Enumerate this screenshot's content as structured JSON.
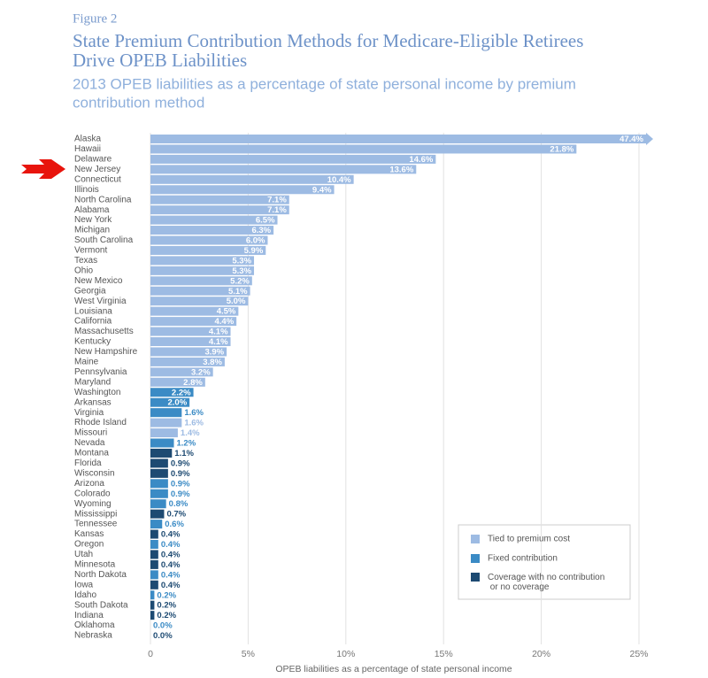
{
  "chart_data": {
    "type": "hbar",
    "figure_label": "Figure 2",
    "title": [
      "State Premium Contribution Methods for Medicare-Eligible Retirees",
      "Drive OPEB Liabilities"
    ],
    "subtitle": [
      "2013 OPEB liabilities as a percentage of state personal income by premium",
      "contribution method"
    ],
    "x_label": "OPEB liabilities as a percentage of state personal income",
    "categories": [
      "Alaska",
      "Hawaii",
      "Delaware",
      "New Jersey",
      "Connecticut",
      "Illinois",
      "North Carolina",
      "Alabama",
      "New York",
      "Michigan",
      "South Carolina",
      "Vermont",
      "Texas",
      "Ohio",
      "New Mexico",
      "Georgia",
      "West Virginia",
      "Louisiana",
      "California",
      "Massachusetts",
      "Kentucky",
      "New Hampshire",
      "Maine",
      "Pennsylvania",
      "Maryland",
      "Washington",
      "Arkansas",
      "Virginia",
      "Rhode Island",
      "Missouri",
      "Nevada",
      "Montana",
      "Florida",
      "Wisconsin",
      "Arizona",
      "Colorado",
      "Wyoming",
      "Mississippi",
      "Tennessee",
      "Kansas",
      "Oregon",
      "Utah",
      "Minnesota",
      "North Dakota",
      "Iowa",
      "Idaho",
      "South Dakota",
      "Indiana",
      "Oklahoma",
      "Nebraska"
    ],
    "series": [
      {
        "name": "Tied to premium cost",
        "color": "#9dbbe3",
        "values": [
          47.4,
          21.8,
          14.6,
          13.6,
          10.4,
          9.4,
          7.1,
          7.1,
          6.5,
          6.3,
          6.0,
          5.9,
          5.3,
          5.3,
          5.2,
          5.1,
          5.0,
          4.5,
          4.4,
          4.1,
          4.1,
          3.9,
          3.8,
          3.2,
          2.8,
          null,
          null,
          null,
          1.6,
          1.4,
          null,
          null,
          null,
          null,
          null,
          null,
          null,
          null,
          null,
          null,
          null,
          null,
          null,
          null,
          null,
          null,
          null,
          null,
          null,
          null
        ],
        "value_labels": [
          "47.4%",
          "21.8%",
          "14.6%",
          "13.6%",
          "10.4%",
          "9.4%",
          "7.1%",
          "7.1%",
          "6.5%",
          "6.3%",
          "6.0%",
          "5.9%",
          "5.3%",
          "5.3%",
          "5.2%",
          "5.1%",
          "5.0%",
          "4.5%",
          "4.4%",
          "4.1%",
          "4.1%",
          "3.9%",
          "3.8%",
          "3.2%",
          "2.8%",
          null,
          null,
          null,
          "1.6%",
          "1.4%",
          null,
          null,
          null,
          null,
          null,
          null,
          null,
          null,
          null,
          null,
          null,
          null,
          null,
          null,
          null,
          null,
          null,
          null,
          null,
          null
        ]
      },
      {
        "name": "Fixed contribution",
        "color": "#3b8bc5",
        "values": [
          null,
          null,
          null,
          null,
          null,
          null,
          null,
          null,
          null,
          null,
          null,
          null,
          null,
          null,
          null,
          null,
          null,
          null,
          null,
          null,
          null,
          null,
          null,
          null,
          null,
          2.2,
          2.0,
          1.6,
          null,
          null,
          1.2,
          null,
          null,
          null,
          0.9,
          0.9,
          0.8,
          null,
          0.6,
          null,
          0.4,
          null,
          null,
          0.4,
          null,
          0.2,
          null,
          null,
          0.0,
          null
        ],
        "value_labels": [
          null,
          null,
          null,
          null,
          null,
          null,
          null,
          null,
          null,
          null,
          null,
          null,
          null,
          null,
          null,
          null,
          null,
          null,
          null,
          null,
          null,
          null,
          null,
          null,
          null,
          "2.2%",
          "2.0%",
          "1.6%",
          null,
          null,
          "1.2%",
          null,
          null,
          null,
          "0.9%",
          "0.9%",
          "0.8%",
          null,
          "0.6%",
          null,
          "0.4%",
          null,
          null,
          "0.4%",
          null,
          "0.2%",
          null,
          null,
          "0.0%",
          null
        ]
      },
      {
        "name": "Coverage with no contribution or no coverage",
        "color": "#1d4a72",
        "values": [
          null,
          null,
          null,
          null,
          null,
          null,
          null,
          null,
          null,
          null,
          null,
          null,
          null,
          null,
          null,
          null,
          null,
          null,
          null,
          null,
          null,
          null,
          null,
          null,
          null,
          null,
          null,
          null,
          null,
          null,
          null,
          1.1,
          0.9,
          0.9,
          null,
          null,
          null,
          0.7,
          null,
          0.4,
          null,
          0.4,
          0.4,
          null,
          0.4,
          null,
          0.2,
          0.2,
          null,
          0.0
        ],
        "value_labels": [
          null,
          null,
          null,
          null,
          null,
          null,
          null,
          null,
          null,
          null,
          null,
          null,
          null,
          null,
          null,
          null,
          null,
          null,
          null,
          null,
          null,
          null,
          null,
          null,
          null,
          null,
          null,
          null,
          null,
          null,
          null,
          "1.1%",
          "0.9%",
          "0.9%",
          null,
          null,
          null,
          "0.7%",
          null,
          "0.4%",
          null,
          "0.4%",
          "0.4%",
          null,
          "0.4%",
          null,
          "0.2%",
          "0.2%",
          null,
          "0.0%"
        ]
      }
    ],
    "xlim": [
      0,
      25
    ],
    "xticks": [
      0,
      {
        "value": 5,
        "label": "5%"
      },
      {
        "value": 10,
        "label": "10%"
      },
      {
        "value": 15,
        "label": "15%"
      },
      {
        "value": 20,
        "label": "20%"
      },
      {
        "value": 25,
        "label": "25%"
      }
    ],
    "grid": true
  }
}
